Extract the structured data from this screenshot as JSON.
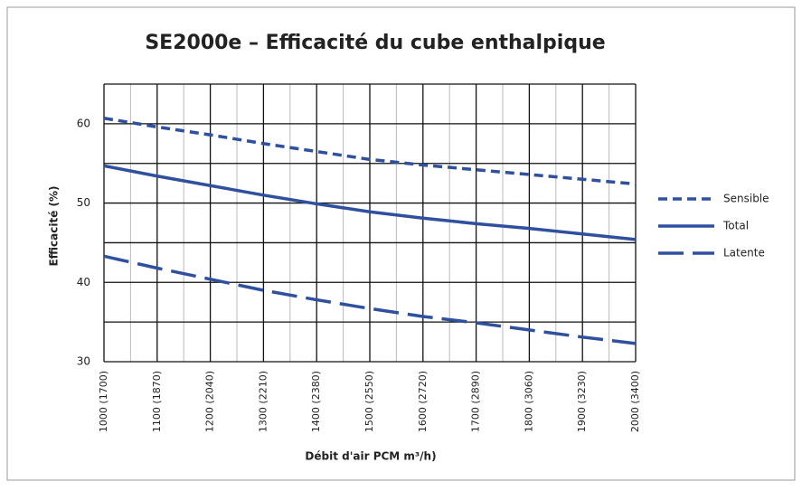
{
  "chart_data": {
    "type": "line",
    "title": "SE2000e – Efficacité du cube enthalpique",
    "x_label": "Débit d'air PCM  m³/h)",
    "y_label": "Efficacité (%)",
    "categories": [
      "1000 (1700)",
      "1100 (1870)",
      "1200 (2040)",
      "1300 (2210)",
      "1400 (2380)",
      "1500 (2550)",
      "1600 (2720)",
      "1700 (2890)",
      "1800 (3060)",
      "1900 (3230)",
      "2000 (3400)"
    ],
    "series": [
      {
        "name": "Sensible",
        "color": "#2f4f9f",
        "style": "short-dash",
        "values": [
          60.7,
          59.6,
          58.6,
          57.5,
          56.5,
          55.5,
          54.8,
          54.2,
          53.6,
          53.0,
          52.4
        ]
      },
      {
        "name": "Total",
        "color": "#2f4f9f",
        "style": "solid",
        "values": [
          54.7,
          53.4,
          52.2,
          51.0,
          49.9,
          48.9,
          48.1,
          47.4,
          46.8,
          46.1,
          45.4
        ]
      },
      {
        "name": "Latente",
        "color": "#2f4f9f",
        "style": "long-dash",
        "values": [
          43.3,
          41.8,
          40.4,
          39.0,
          37.8,
          36.7,
          35.7,
          34.9,
          34.0,
          33.1,
          32.3
        ]
      }
    ],
    "ylim": [
      30,
      65
    ],
    "yticks": [
      30,
      40,
      50,
      60
    ],
    "ygrid": [
      35,
      45,
      55,
      65
    ],
    "grid": true,
    "legend": "right"
  }
}
